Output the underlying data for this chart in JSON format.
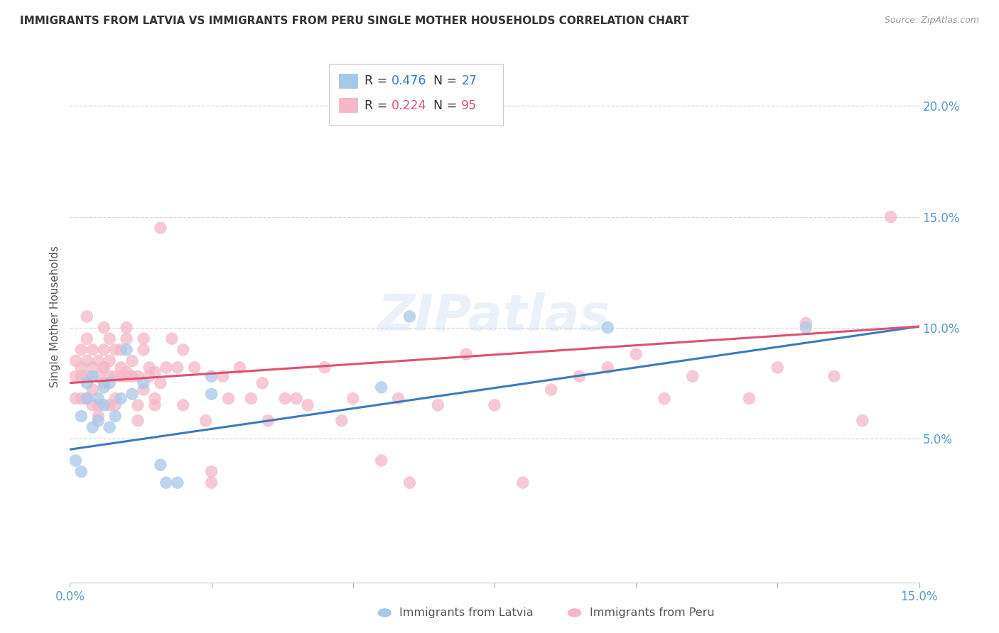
{
  "title": "IMMIGRANTS FROM LATVIA VS IMMIGRANTS FROM PERU SINGLE MOTHER HOUSEHOLDS CORRELATION CHART",
  "source": "Source: ZipAtlas.com",
  "ylabel": "Single Mother Households",
  "ytick_labels": [
    "5.0%",
    "10.0%",
    "15.0%",
    "20.0%"
  ],
  "ytick_values": [
    0.05,
    0.1,
    0.15,
    0.2
  ],
  "xlim": [
    0.0,
    0.15
  ],
  "ylim": [
    -0.015,
    0.225
  ],
  "latvia_R": 0.476,
  "latvia_N": 27,
  "peru_R": 0.224,
  "peru_N": 95,
  "latvia_color": "#a8c8e8",
  "peru_color": "#f4b8c8",
  "latvia_line_color": "#3a7abf",
  "peru_line_color": "#e05070",
  "background_color": "#ffffff",
  "grid_color": "#d8d8d8",
  "watermark_text": "ZIPatlas",
  "latvia_intercept": 0.045,
  "latvia_slope": 0.37,
  "peru_intercept": 0.075,
  "peru_slope": 0.17,
  "latvia_x": [
    0.001,
    0.002,
    0.003,
    0.003,
    0.004,
    0.004,
    0.005,
    0.005,
    0.006,
    0.006,
    0.007,
    0.007,
    0.008,
    0.009,
    0.01,
    0.011,
    0.013,
    0.016,
    0.017,
    0.019,
    0.025,
    0.025,
    0.055,
    0.06,
    0.095,
    0.13,
    0.002
  ],
  "latvia_y": [
    0.04,
    0.06,
    0.068,
    0.075,
    0.078,
    0.055,
    0.058,
    0.068,
    0.073,
    0.065,
    0.075,
    0.055,
    0.06,
    0.068,
    0.09,
    0.07,
    0.075,
    0.038,
    0.03,
    0.03,
    0.07,
    0.078,
    0.073,
    0.105,
    0.1,
    0.1,
    0.035
  ],
  "peru_x": [
    0.001,
    0.001,
    0.001,
    0.002,
    0.002,
    0.002,
    0.002,
    0.003,
    0.003,
    0.003,
    0.003,
    0.004,
    0.004,
    0.004,
    0.005,
    0.005,
    0.005,
    0.006,
    0.006,
    0.006,
    0.007,
    0.007,
    0.007,
    0.008,
    0.008,
    0.009,
    0.009,
    0.01,
    0.01,
    0.01,
    0.011,
    0.011,
    0.012,
    0.012,
    0.013,
    0.013,
    0.014,
    0.014,
    0.015,
    0.016,
    0.017,
    0.018,
    0.019,
    0.02,
    0.022,
    0.024,
    0.025,
    0.027,
    0.028,
    0.03,
    0.032,
    0.034,
    0.035,
    0.038,
    0.04,
    0.042,
    0.045,
    0.048,
    0.05,
    0.055,
    0.058,
    0.06,
    0.065,
    0.07,
    0.075,
    0.08,
    0.085,
    0.09,
    0.095,
    0.1,
    0.105,
    0.11,
    0.12,
    0.125,
    0.13,
    0.135,
    0.14,
    0.145,
    0.003,
    0.004,
    0.005,
    0.006,
    0.007,
    0.008,
    0.009,
    0.013,
    0.015,
    0.016,
    0.02,
    0.025,
    0.006,
    0.008,
    0.01,
    0.012,
    0.015
  ],
  "peru_y": [
    0.085,
    0.078,
    0.068,
    0.09,
    0.078,
    0.068,
    0.082,
    0.095,
    0.085,
    0.078,
    0.068,
    0.09,
    0.082,
    0.072,
    0.085,
    0.078,
    0.065,
    0.09,
    0.082,
    0.075,
    0.085,
    0.078,
    0.065,
    0.09,
    0.078,
    0.09,
    0.082,
    0.08,
    0.095,
    0.078,
    0.085,
    0.078,
    0.065,
    0.078,
    0.09,
    0.072,
    0.082,
    0.078,
    0.08,
    0.145,
    0.082,
    0.095,
    0.082,
    0.09,
    0.082,
    0.058,
    0.03,
    0.078,
    0.068,
    0.082,
    0.068,
    0.075,
    0.058,
    0.068,
    0.068,
    0.065,
    0.082,
    0.058,
    0.068,
    0.04,
    0.068,
    0.03,
    0.065,
    0.088,
    0.065,
    0.03,
    0.072,
    0.078,
    0.082,
    0.088,
    0.068,
    0.078,
    0.068,
    0.082,
    0.102,
    0.078,
    0.058,
    0.15,
    0.105,
    0.065,
    0.06,
    0.1,
    0.095,
    0.065,
    0.078,
    0.095,
    0.065,
    0.075,
    0.065,
    0.035,
    0.082,
    0.068,
    0.1,
    0.058,
    0.068
  ]
}
